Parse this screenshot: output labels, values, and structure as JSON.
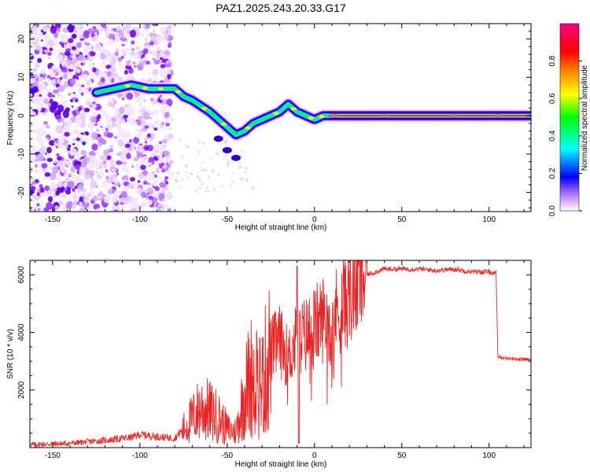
{
  "chart_data": [
    {
      "type": "heatmap",
      "title": "PAZ1.2025.243.20.33.G17",
      "xlabel": "Height of straight line (km)",
      "ylabel": "Frequency (Hz)",
      "xlim": [
        -163,
        124
      ],
      "ylim": [
        -25,
        24
      ],
      "x_ticks": [
        -150,
        -100,
        -50,
        0,
        50,
        100
      ],
      "y_ticks": [
        -20,
        -10,
        0,
        10,
        20
      ],
      "colorbar": {
        "label": "Normalized spectral amplitude",
        "range": [
          0,
          1
        ],
        "ticks": [
          0.0,
          0.2,
          0.4,
          0.6,
          0.8
        ],
        "tick_labels": [
          "0.0",
          "0.2",
          "0.4",
          "0.6",
          "0.8"
        ],
        "colors": [
          "#f2e8ff",
          "#c080ff",
          "#7000ff",
          "#0000ff",
          "#00ffff",
          "#00ff00",
          "#ffff00",
          "#ff8000",
          "#ff0000",
          "#ff00a0"
        ]
      },
      "ridge": {
        "x": [
          -125,
          -115,
          -105,
          -95,
          -85,
          -80,
          -75,
          -70,
          -65,
          -60,
          -55,
          -50,
          -45,
          -40,
          -35,
          -30,
          -25,
          -20,
          -15,
          -10,
          -5,
          0,
          5,
          10,
          50,
          100,
          124
        ],
        "y": [
          6,
          7,
          8,
          7,
          7,
          7,
          5,
          4,
          2.5,
          1,
          -1,
          -3,
          -5,
          -4,
          -2,
          -1,
          0,
          1,
          3,
          1,
          0,
          -1,
          0,
          0,
          0,
          0,
          0
        ]
      },
      "noise_region_km": [
        -163,
        -82
      ]
    },
    {
      "type": "line",
      "title": "",
      "xlabel": "Height of straight line (km)",
      "ylabel": "SNR (10 * v/v)",
      "xlim": [
        -163,
        124
      ],
      "ylim": [
        0,
        6500
      ],
      "x_ticks": [
        -150,
        -100,
        -50,
        0,
        50,
        100
      ],
      "y_ticks": [
        2000,
        4000,
        6000
      ],
      "color": "#ee2222",
      "series": [
        {
          "name": "SNR",
          "x": [
            -163,
            -140,
            -120,
            -105,
            -100,
            -90,
            -80,
            -75,
            -70,
            -65,
            -60,
            -55,
            -50,
            -45,
            -40,
            -35,
            -30,
            -25,
            -20,
            -15,
            -10,
            -5,
            0,
            5,
            10,
            15,
            20,
            25,
            30,
            35,
            40,
            50,
            60,
            70,
            80,
            90,
            100,
            104,
            105,
            110,
            124
          ],
          "y": [
            100,
            150,
            250,
            350,
            450,
            380,
            330,
            650,
            1000,
            1400,
            1250,
            1050,
            650,
            550,
            1900,
            2700,
            2200,
            3400,
            3700,
            3100,
            3800,
            3900,
            4200,
            4500,
            4500,
            4900,
            5300,
            5700,
            6000,
            6100,
            6200,
            6200,
            6200,
            6150,
            6200,
            6100,
            6100,
            6050,
            3150,
            3100,
            3050
          ]
        }
      ]
    }
  ]
}
